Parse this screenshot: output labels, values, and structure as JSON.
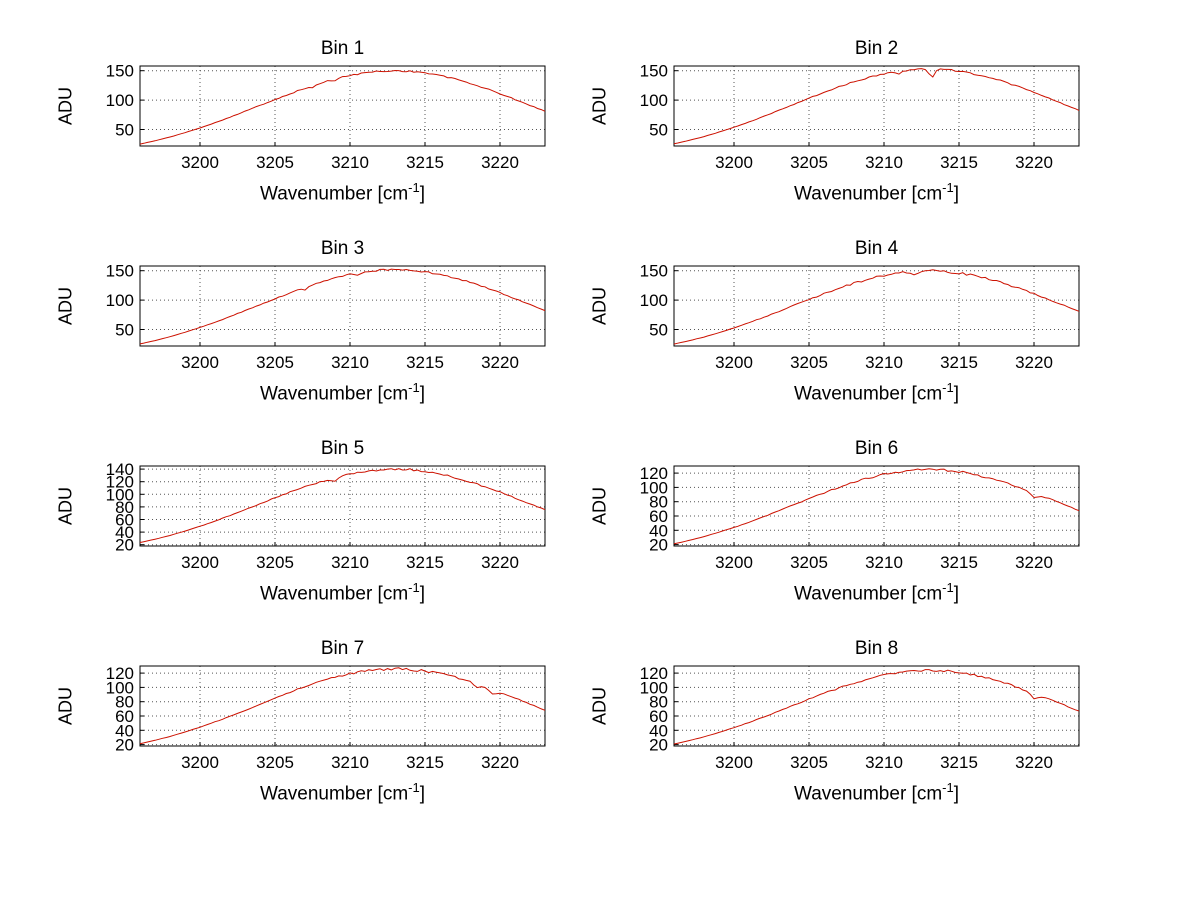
{
  "figure": {
    "background": "#ffffff",
    "line_color": "#cc1100",
    "grid_color": "#555555",
    "axis_color": "#000000"
  },
  "labels": {
    "ylabel": "ADU",
    "xlabel_pre": "Wavenumber [cm",
    "xlabel_sup": "-1",
    "xlabel_post": "]"
  },
  "chart_data": {
    "type": "line",
    "title": "",
    "xlabel": "Wavenumber [cm^-1]",
    "ylabel": "ADU",
    "grid": true,
    "legend": false,
    "xlim": [
      3196,
      3223
    ],
    "xticks": [
      3200,
      3205,
      3210,
      3215,
      3220
    ],
    "x": [
      3196,
      3197,
      3198,
      3199,
      3200,
      3201,
      3202,
      3203,
      3204,
      3205,
      3206,
      3207,
      3208,
      3209,
      3210,
      3211,
      3212,
      3213,
      3214,
      3215,
      3216,
      3217,
      3218,
      3219,
      3220,
      3221,
      3222,
      3223
    ],
    "series": [
      {
        "name": "Bin 1",
        "peak": 150,
        "noise": 1.4,
        "ylim": [
          22,
          158
        ],
        "yticks": [
          50,
          100,
          150
        ],
        "values": [
          25.2,
          30.9,
          37.3,
          44.7,
          52.8,
          61.6,
          71.1,
          81.0,
          91.1,
          101.1,
          110.9,
          120.2,
          128.6,
          135.9,
          141.9,
          146.4,
          149.1,
          150.0,
          149.1,
          146.4,
          141.9,
          135.9,
          128.6,
          120.2,
          110.9,
          101.1,
          91.1,
          81.0
        ],
        "dips": [
          {
            "x": 3207.5,
            "depth": 3,
            "w": 0.2
          },
          {
            "x": 3209,
            "depth": 2.5,
            "w": 0.15
          }
        ]
      },
      {
        "name": "Bin 2",
        "peak": 153,
        "noise": 1.5,
        "ylim": [
          22,
          158
        ],
        "yticks": [
          50,
          100,
          150
        ],
        "values": [
          25.7,
          31.5,
          38.0,
          45.6,
          53.9,
          62.8,
          72.5,
          82.6,
          92.9,
          103.1,
          113.1,
          122.6,
          131.2,
          138.6,
          144.7,
          149.3,
          152.1,
          153.0,
          152.1,
          149.3,
          144.7,
          138.6,
          131.2,
          122.6,
          113.1,
          103.1,
          92.9,
          82.6
        ],
        "dips": [
          {
            "x": 3213.2,
            "depth": 13,
            "w": 0.18
          },
          {
            "x": 3211,
            "depth": 4,
            "w": 0.15
          }
        ]
      },
      {
        "name": "Bin 3",
        "peak": 152,
        "noise": 1.5,
        "ylim": [
          22,
          158
        ],
        "yticks": [
          50,
          100,
          150
        ],
        "values": [
          25.5,
          31.3,
          37.8,
          45.3,
          53.5,
          62.4,
          72.0,
          82.1,
          92.3,
          102.4,
          112.4,
          121.8,
          130.3,
          137.7,
          143.8,
          148.3,
          151.1,
          152.0,
          151.1,
          148.3,
          143.8,
          137.7,
          130.3,
          121.8,
          112.4,
          102.4,
          92.3,
          82.1
        ],
        "dips": [
          {
            "x": 3207,
            "depth": 4,
            "w": 0.2
          },
          {
            "x": 3210.5,
            "depth": 3,
            "w": 0.15
          }
        ]
      },
      {
        "name": "Bin 4",
        "peak": 150,
        "noise": 2.2,
        "ylim": [
          22,
          158
        ],
        "yticks": [
          50,
          100,
          150
        ],
        "values": [
          25.2,
          30.9,
          37.3,
          44.7,
          52.8,
          61.6,
          71.1,
          81.0,
          91.1,
          101.1,
          110.9,
          120.2,
          128.6,
          135.9,
          141.9,
          146.4,
          149.1,
          150.0,
          149.1,
          146.4,
          141.9,
          135.9,
          128.6,
          120.2,
          110.9,
          101.1,
          91.1,
          81.0
        ],
        "dips": [
          {
            "x": 3212,
            "depth": 4,
            "w": 0.2
          },
          {
            "x": 3215,
            "depth": 3,
            "w": 0.15
          }
        ]
      },
      {
        "name": "Bin 5",
        "peak": 140,
        "noise": 1.6,
        "ylim": [
          18,
          145
        ],
        "yticks": [
          20,
          40,
          60,
          80,
          100,
          120,
          140
        ],
        "values": [
          23.5,
          28.8,
          34.8,
          41.7,
          49.3,
          57.5,
          66.4,
          75.6,
          85.0,
          94.4,
          103.5,
          112.2,
          120.0,
          126.8,
          132.4,
          136.6,
          139.2,
          140.0,
          139.2,
          136.6,
          132.4,
          126.8,
          120.0,
          112.2,
          103.5,
          94.4,
          85.0,
          75.6
        ],
        "dips": [
          {
            "x": 3209,
            "depth": 5,
            "w": 0.2
          }
        ]
      },
      {
        "name": "Bin 6",
        "peak": 125,
        "noise": 1.6,
        "ylim": [
          18,
          130
        ],
        "yticks": [
          20,
          40,
          60,
          80,
          100,
          120
        ],
        "values": [
          21.0,
          25.8,
          31.1,
          37.3,
          44.0,
          51.3,
          59.3,
          67.5,
          75.9,
          84.3,
          92.4,
          100.2,
          107.2,
          113.3,
          118.3,
          122.0,
          124.3,
          125.0,
          124.3,
          122.0,
          118.3,
          113.3,
          107.2,
          100.2,
          92.4,
          84.3,
          75.9,
          67.5
        ],
        "dips": [
          {
            "x": 3220,
            "depth": 7,
            "w": 0.25
          }
        ]
      },
      {
        "name": "Bin 7",
        "peak": 126,
        "noise": 1.7,
        "ylim": [
          18,
          130
        ],
        "yticks": [
          20,
          40,
          60,
          80,
          100,
          120
        ],
        "values": [
          21.2,
          26.0,
          31.3,
          37.6,
          44.4,
          51.7,
          59.7,
          68.0,
          76.5,
          84.9,
          93.2,
          101.0,
          108.0,
          114.2,
          119.2,
          123.0,
          125.2,
          126.0,
          125.2,
          123.0,
          119.2,
          114.2,
          108.0,
          101.0,
          93.2,
          84.9,
          76.5,
          68.0
        ],
        "dips": [
          {
            "x": 3219.5,
            "depth": 7,
            "w": 0.25
          },
          {
            "x": 3218.5,
            "depth": 4,
            "w": 0.2
          }
        ]
      },
      {
        "name": "Bin 8",
        "peak": 124,
        "noise": 1.7,
        "ylim": [
          18,
          130
        ],
        "yticks": [
          20,
          40,
          60,
          80,
          100,
          120
        ],
        "values": [
          20.8,
          25.5,
          30.8,
          37.0,
          43.7,
          50.9,
          58.8,
          67.0,
          75.3,
          83.6,
          91.7,
          99.4,
          106.3,
          112.4,
          117.3,
          121.0,
          123.3,
          124.0,
          123.3,
          121.0,
          117.3,
          112.4,
          106.3,
          99.4,
          91.7,
          83.6,
          75.3,
          67.0
        ],
        "dips": [
          {
            "x": 3220,
            "depth": 7,
            "w": 0.25
          }
        ]
      }
    ]
  }
}
